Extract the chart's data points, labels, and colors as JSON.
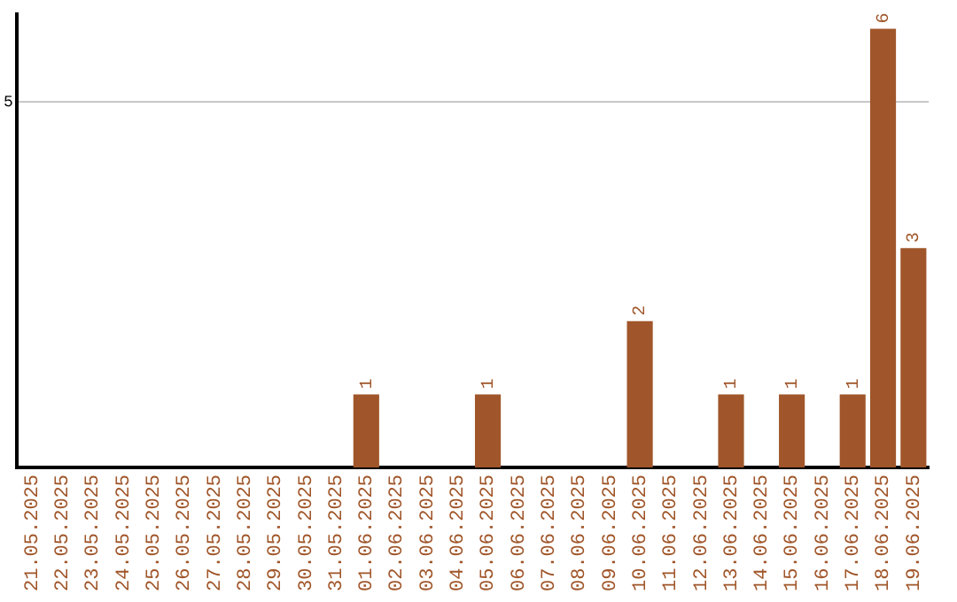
{
  "chart_data": {
    "type": "bar",
    "categories": [
      "21.05.2025",
      "22.05.2025",
      "23.05.2025",
      "24.05.2025",
      "25.05.2025",
      "26.05.2025",
      "27.05.2025",
      "28.05.2025",
      "29.05.2025",
      "30.05.2025",
      "31.05.2025",
      "01.06.2025",
      "02.06.2025",
      "03.06.2025",
      "04.06.2025",
      "05.06.2025",
      "06.06.2025",
      "07.06.2025",
      "08.06.2025",
      "09.06.2025",
      "10.06.2025",
      "11.06.2025",
      "12.06.2025",
      "13.06.2025",
      "14.06.2025",
      "15.06.2025",
      "16.06.2025",
      "17.06.2025",
      "18.06.2025",
      "19.06.2025"
    ],
    "values": [
      0,
      0,
      0,
      0,
      0,
      0,
      0,
      0,
      0,
      0,
      0,
      1,
      0,
      0,
      0,
      1,
      0,
      0,
      0,
      0,
      2,
      0,
      0,
      1,
      0,
      1,
      0,
      1,
      6,
      3
    ],
    "value_labels": [
      null,
      null,
      null,
      null,
      null,
      null,
      null,
      null,
      null,
      null,
      null,
      "1",
      null,
      null,
      null,
      "1",
      null,
      null,
      null,
      null,
      "2",
      null,
      null,
      "1",
      null,
      "1",
      null,
      "1",
      "6",
      "3"
    ],
    "color": "#a0562a",
    "ylim": [
      0,
      6.2
    ],
    "yticks": [
      5
    ],
    "grid": "y",
    "legend": false
  }
}
